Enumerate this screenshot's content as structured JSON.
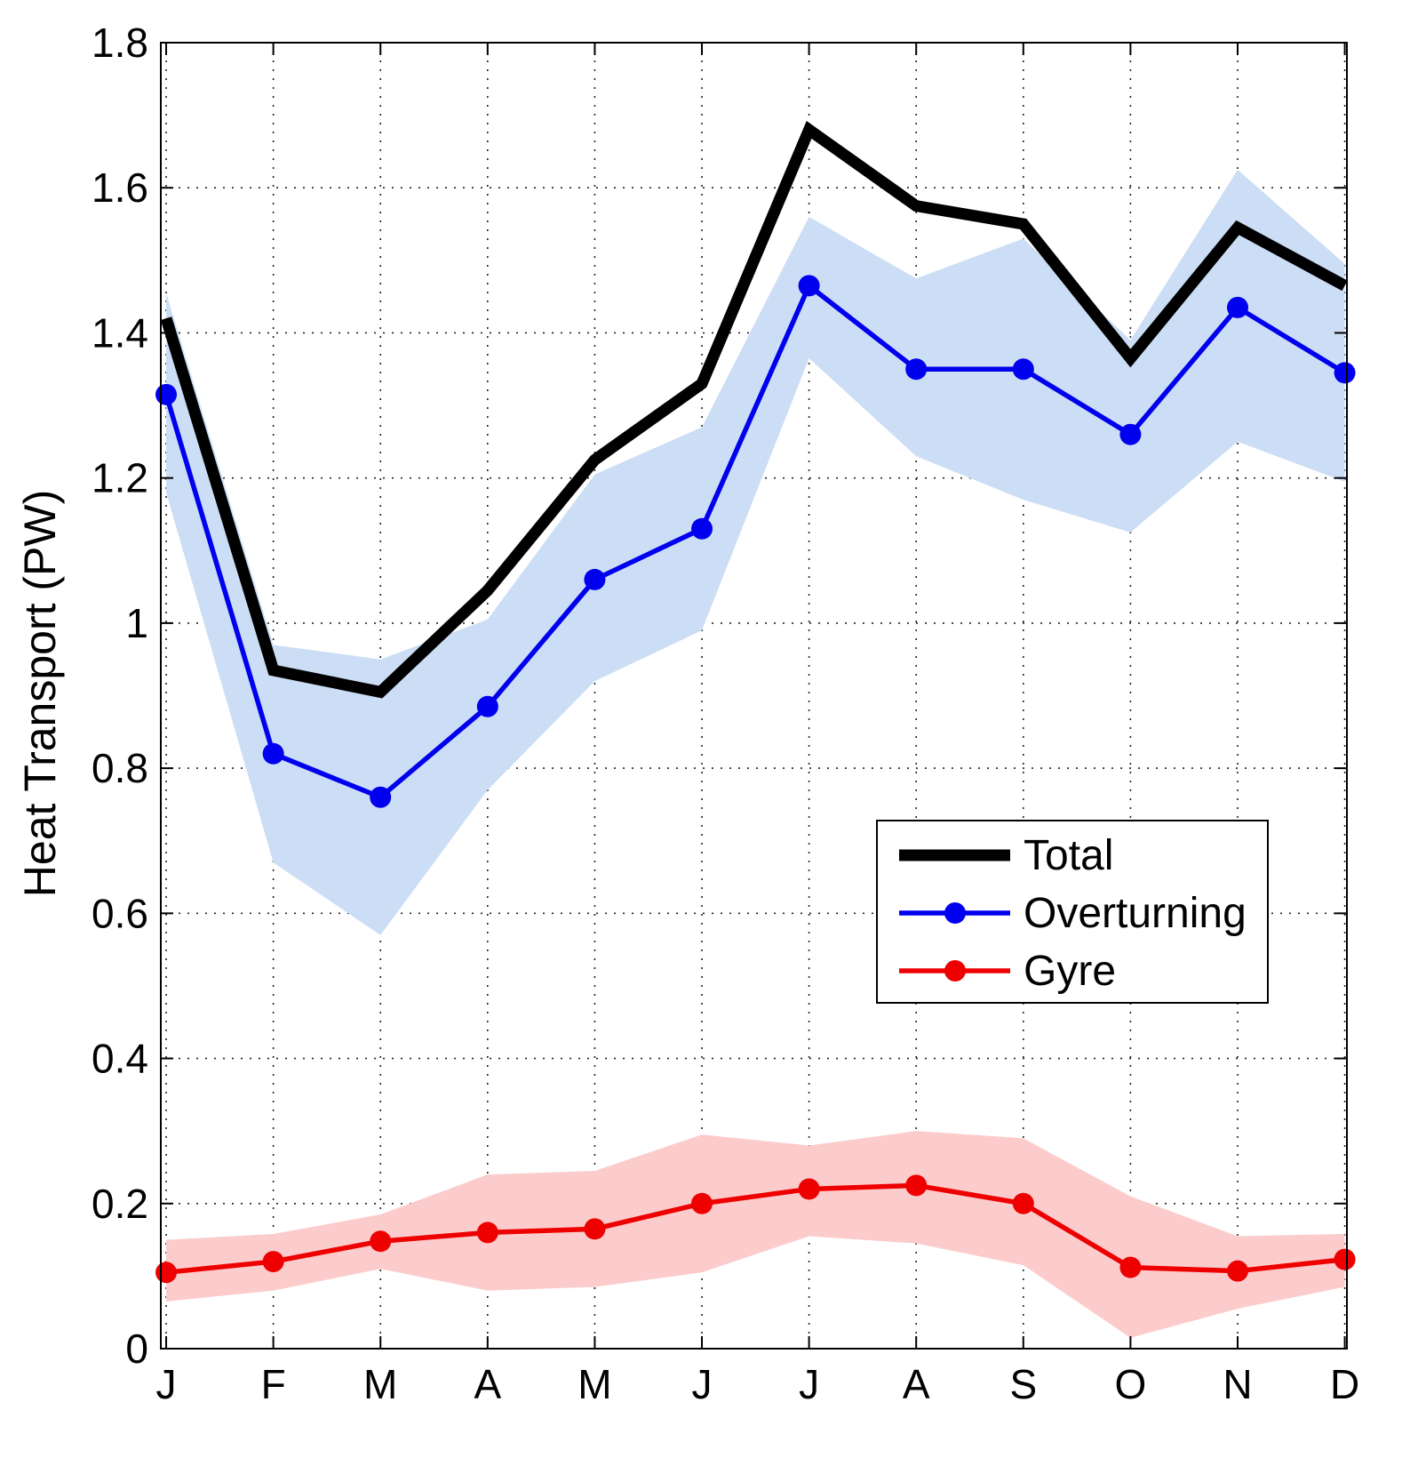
{
  "chart_data": {
    "type": "line",
    "title": "",
    "xlabel": "",
    "ylabel": "Heat Transport (PW)",
    "categories": [
      "J",
      "F",
      "M",
      "A",
      "M",
      "J",
      "J",
      "A",
      "S",
      "O",
      "N",
      "D"
    ],
    "x": [
      1,
      2,
      3,
      4,
      5,
      6,
      7,
      8,
      9,
      10,
      11,
      12
    ],
    "xlim": [
      0.95,
      12.02
    ],
    "ylim": [
      0,
      1.8
    ],
    "yticks": [
      0,
      0.2,
      0.4,
      0.6,
      0.8,
      1,
      1.2,
      1.4,
      1.6,
      1.8
    ],
    "ytick_labels": [
      "0",
      "0.2",
      "0.4",
      "0.6",
      "0.8",
      "1",
      "1.2",
      "1.4",
      "1.6",
      "1.8"
    ],
    "grid": true,
    "legend_position": "center-right",
    "series": [
      {
        "name": "Total",
        "color": "#000000",
        "marker": "none",
        "values": [
          1.42,
          0.935,
          0.905,
          1.045,
          1.225,
          1.33,
          1.68,
          1.575,
          1.55,
          1.365,
          1.545,
          1.465
        ]
      },
      {
        "name": "Overturning",
        "color": "#0000ee",
        "marker": "circle",
        "band_color": "#ccdef5",
        "band_lower": [
          1.18,
          0.67,
          0.57,
          0.77,
          0.92,
          0.99,
          1.365,
          1.23,
          1.17,
          1.125,
          1.25,
          1.195
        ],
        "band_upper": [
          1.455,
          0.97,
          0.95,
          1.005,
          1.205,
          1.27,
          1.56,
          1.475,
          1.53,
          1.39,
          1.625,
          1.495
        ],
        "values": [
          1.315,
          0.82,
          0.76,
          0.885,
          1.06,
          1.13,
          1.465,
          1.35,
          1.35,
          1.26,
          1.435,
          1.345
        ]
      },
      {
        "name": "Gyre",
        "color": "#ee0000",
        "marker": "circle",
        "band_color": "#fccccc",
        "band_lower": [
          0.065,
          0.08,
          0.11,
          0.08,
          0.085,
          0.105,
          0.155,
          0.145,
          0.115,
          0.015,
          0.055,
          0.085
        ],
        "band_upper": [
          0.15,
          0.158,
          0.185,
          0.24,
          0.245,
          0.295,
          0.28,
          0.3,
          0.29,
          0.21,
          0.155,
          0.158
        ],
        "values": [
          0.105,
          0.12,
          0.148,
          0.16,
          0.165,
          0.2,
          0.22,
          0.225,
          0.2,
          0.112,
          0.107,
          0.123
        ]
      }
    ]
  }
}
